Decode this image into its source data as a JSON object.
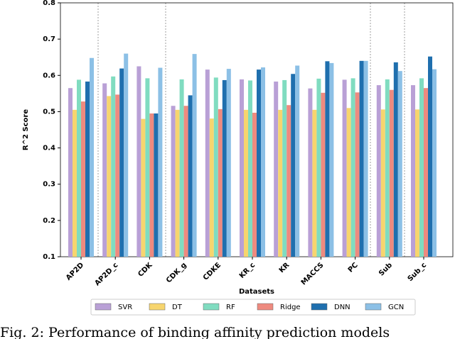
{
  "chart_data": {
    "type": "bar",
    "y_label": "R^2 Score",
    "x_label": "Datasets",
    "caption": "Fig. 2: Performance of binding affinity prediction models",
    "categories": [
      "AP2D",
      "AP2D_c",
      "CDK",
      "CDK_g",
      "CDKE",
      "KR_c",
      "KR",
      "MACCS",
      "PC",
      "Sub",
      "Sub_c"
    ],
    "series": [
      {
        "name": "SVR",
        "color": "#b9a0d6",
        "values": [
          0.565,
          0.578,
          0.625,
          0.516,
          0.616,
          0.589,
          0.583,
          0.564,
          0.588,
          0.573,
          0.573
        ]
      },
      {
        "name": "DT",
        "color": "#f7d56e",
        "values": [
          0.505,
          0.543,
          0.48,
          0.505,
          0.481,
          0.505,
          0.505,
          0.505,
          0.51,
          0.506,
          0.506
        ]
      },
      {
        "name": "RF",
        "color": "#80dcc0",
        "values": [
          0.588,
          0.597,
          0.592,
          0.589,
          0.594,
          0.586,
          0.587,
          0.591,
          0.592,
          0.589,
          0.592
        ]
      },
      {
        "name": "Ridge",
        "color": "#ee8a7f",
        "values": [
          0.528,
          0.547,
          0.495,
          0.516,
          0.507,
          0.497,
          0.518,
          0.552,
          0.553,
          0.56,
          0.565
        ]
      },
      {
        "name": "DNN",
        "color": "#1f6fae",
        "values": [
          0.583,
          0.619,
          0.495,
          0.545,
          0.587,
          0.616,
          0.604,
          0.639,
          0.64,
          0.636,
          0.652
        ]
      },
      {
        "name": "GCN",
        "color": "#8cc0e6",
        "values": [
          0.648,
          0.66,
          0.621,
          0.659,
          0.618,
          0.622,
          0.627,
          0.634,
          0.64,
          0.612,
          0.617
        ]
      }
    ],
    "ylim": [
      0.1,
      0.8
    ],
    "yticks": [
      0.1,
      0.2,
      0.3,
      0.4,
      0.5,
      0.6,
      0.7,
      0.8
    ]
  }
}
